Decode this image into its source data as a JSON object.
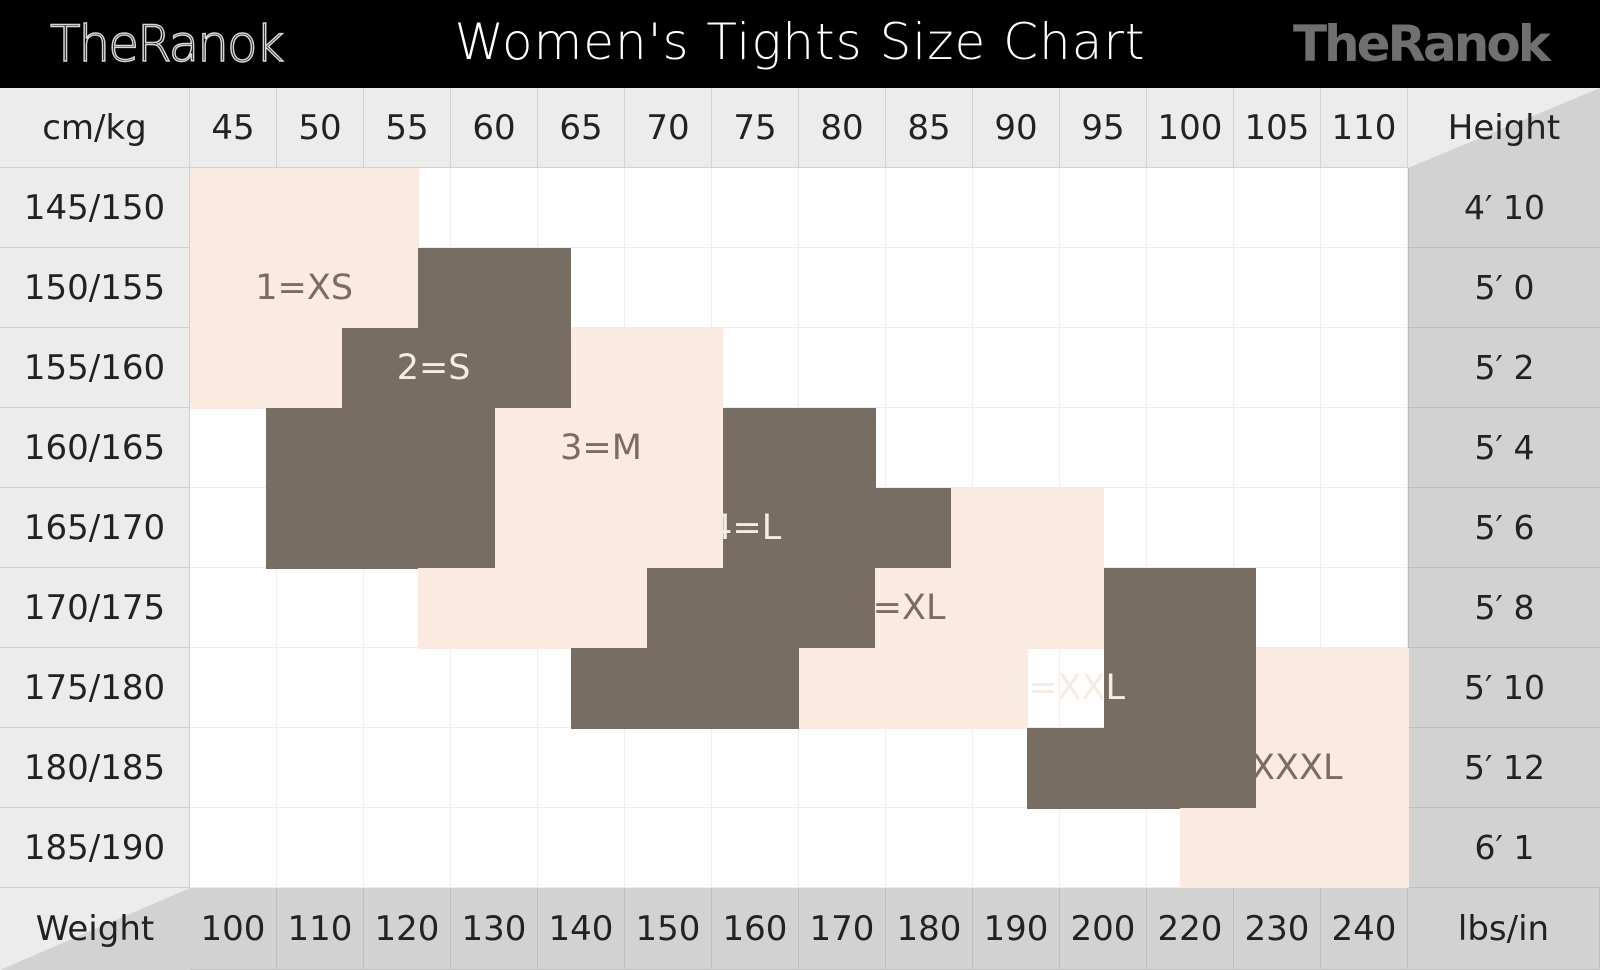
{
  "title": "Women's Tights Size Chart",
  "logo_left": "TheRanok",
  "logo_right": "TheRanok",
  "corner_top_left": "cm/kg",
  "corner_top_right": "Height",
  "corner_bottom_left": "Weight",
  "corner_bottom_right": "lbs/in",
  "weights_kg": [
    "45",
    "50",
    "55",
    "60",
    "65",
    "70",
    "75",
    "80",
    "85",
    "90",
    "95",
    "100",
    "105",
    "110"
  ],
  "weights_lbs": [
    "100",
    "110",
    "120",
    "130",
    "140",
    "150",
    "160",
    "170",
    "180",
    "190",
    "200",
    "220",
    "230",
    "240"
  ],
  "heights_cm": [
    "145/150",
    "150/155",
    "155/160",
    "160/165",
    "165/170",
    "170/175",
    "175/180",
    "180/185",
    "185/190"
  ],
  "heights_in": [
    "4′ 10",
    "5′ 0",
    "5′ 2",
    "5′ 4",
    "5′ 6",
    "5′ 8",
    "5′ 10",
    "5′ 12",
    "6′ 1"
  ],
  "colors": {
    "light": "#fbeadf",
    "dark": "#786d63",
    "light_text": "#7a6c62",
    "dark_text": "#f5ece4"
  },
  "sizes": [
    {
      "label": "1=XS",
      "tone": "light",
      "cells": [
        [
          0,
          0
        ],
        [
          0,
          1
        ],
        [
          0,
          2
        ],
        [
          1,
          0
        ],
        [
          1,
          1
        ],
        [
          1,
          2
        ],
        [
          2,
          0
        ],
        [
          2,
          1
        ]
      ]
    },
    {
      "label": "2=S",
      "tone": "dark",
      "cells": [
        [
          1,
          3
        ],
        [
          1,
          4
        ],
        [
          2,
          2
        ],
        [
          2,
          3
        ],
        [
          2,
          4
        ],
        [
          3,
          1
        ],
        [
          3,
          2
        ],
        [
          3,
          3
        ],
        [
          4,
          1
        ],
        [
          4,
          2
        ],
        [
          4,
          3
        ]
      ]
    },
    {
      "label": "3=M",
      "tone": "light",
      "cells": [
        [
          2,
          5
        ],
        [
          2,
          6
        ],
        [
          3,
          4
        ],
        [
          3,
          5
        ],
        [
          3,
          6
        ],
        [
          4,
          4
        ],
        [
          4,
          5
        ],
        [
          4,
          6
        ],
        [
          5,
          3
        ],
        [
          5,
          4
        ],
        [
          5,
          5
        ]
      ]
    },
    {
      "label": "4=L",
      "tone": "dark",
      "cells": [
        [
          3,
          7
        ],
        [
          3,
          8
        ],
        [
          4,
          7
        ],
        [
          4,
          8
        ],
        [
          4,
          9
        ],
        [
          5,
          6
        ],
        [
          5,
          7
        ],
        [
          5,
          8
        ],
        [
          6,
          5
        ],
        [
          6,
          6
        ],
        [
          6,
          7
        ]
      ]
    },
    {
      "label": "5=XL",
      "tone": "light",
      "cells": [
        [
          4,
          10
        ],
        [
          4,
          11
        ],
        [
          5,
          9
        ],
        [
          5,
          10
        ],
        [
          5,
          11
        ],
        [
          6,
          8
        ],
        [
          6,
          9
        ],
        [
          6,
          10
        ]
      ]
    },
    {
      "label": "6=XXL",
      "tone": "dark",
      "cells": [
        [
          5,
          12
        ],
        [
          5,
          13
        ],
        [
          6,
          12
        ],
        [
          6,
          13
        ],
        [
          7,
          11
        ],
        [
          7,
          12
        ],
        [
          7,
          13
        ]
      ]
    },
    {
      "label": "7=XXXL",
      "tone": "light",
      "cells": [
        [
          6,
          14
        ],
        [
          6,
          15
        ],
        [
          7,
          14
        ],
        [
          7,
          15
        ],
        [
          8,
          13
        ],
        [
          8,
          14
        ],
        [
          8,
          15
        ]
      ]
    }
  ]
}
